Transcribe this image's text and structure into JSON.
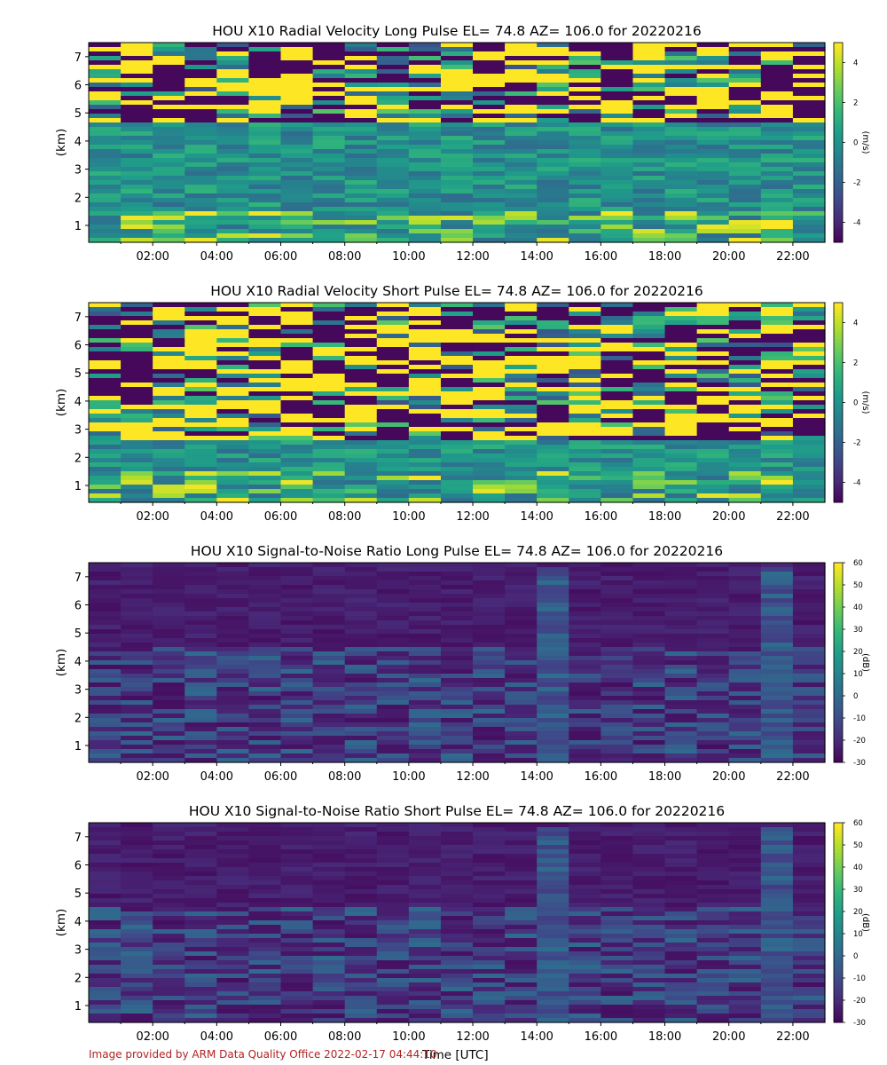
{
  "chart_data": [
    {
      "type": "heatmap",
      "title": "HOU X10 Radial Velocity Long Pulse EL= 74.8 AZ= 106.0 for 20220216",
      "ylabel": "(km)",
      "colorbar_label": "(m/s)",
      "x_ticks": [
        "02:00",
        "04:00",
        "06:00",
        "08:00",
        "10:00",
        "12:00",
        "14:00",
        "16:00",
        "18:00",
        "20:00",
        "22:00"
      ],
      "y_ticks": [
        1,
        2,
        3,
        4,
        5,
        6,
        7
      ],
      "ylim": [
        0.4,
        7.5
      ],
      "xlim_hours": [
        0,
        23
      ],
      "colorbar_ticks": [
        4,
        2,
        0,
        -2,
        -4
      ],
      "clim": [
        -5,
        5
      ],
      "colormap": "viridis"
    },
    {
      "type": "heatmap",
      "title": "HOU X10 Radial Velocity Short Pulse EL= 74.8 AZ= 106.0 for 20220216",
      "ylabel": "(km)",
      "colorbar_label": "(m/s)",
      "x_ticks": [
        "02:00",
        "04:00",
        "06:00",
        "08:00",
        "10:00",
        "12:00",
        "14:00",
        "16:00",
        "18:00",
        "20:00",
        "22:00"
      ],
      "y_ticks": [
        1,
        2,
        3,
        4,
        5,
        6,
        7
      ],
      "ylim": [
        0.4,
        7.5
      ],
      "xlim_hours": [
        0,
        23
      ],
      "colorbar_ticks": [
        4,
        2,
        0,
        -2,
        -4
      ],
      "clim": [
        -5,
        5
      ],
      "colormap": "viridis"
    },
    {
      "type": "heatmap",
      "title": "HOU X10 Signal-to-Noise Ratio Long Pulse EL= 74.8 AZ= 106.0 for 20220216",
      "ylabel": "(km)",
      "colorbar_label": "(dB)",
      "x_ticks": [
        "02:00",
        "04:00",
        "06:00",
        "08:00",
        "10:00",
        "12:00",
        "14:00",
        "16:00",
        "18:00",
        "20:00",
        "22:00"
      ],
      "y_ticks": [
        1,
        2,
        3,
        4,
        5,
        6,
        7
      ],
      "ylim": [
        0.4,
        7.5
      ],
      "xlim_hours": [
        0,
        23
      ],
      "colorbar_ticks": [
        60,
        50,
        40,
        30,
        20,
        10,
        0,
        -10,
        -20,
        -30
      ],
      "clim": [
        -30,
        60
      ],
      "colormap": "viridis"
    },
    {
      "type": "heatmap",
      "title": "HOU X10 Signal-to-Noise Ratio Short Pulse EL= 74.8 AZ= 106.0 for 20220216",
      "ylabel": "(km)",
      "colorbar_label": "(dB)",
      "x_ticks": [
        "02:00",
        "04:00",
        "06:00",
        "08:00",
        "10:00",
        "12:00",
        "14:00",
        "16:00",
        "18:00",
        "20:00",
        "22:00"
      ],
      "y_ticks": [
        1,
        2,
        3,
        4,
        5,
        6,
        7
      ],
      "ylim": [
        0.4,
        7.5
      ],
      "xlim_hours": [
        0,
        23
      ],
      "colorbar_ticks": [
        60,
        50,
        40,
        30,
        20,
        10,
        0,
        -10,
        -20,
        -30
      ],
      "clim": [
        -30,
        60
      ],
      "colormap": "viridis"
    }
  ],
  "xlabel": "Time [UTC]",
  "footer": "Image provided by ARM Data Quality Office 2022-02-17 04:44:10"
}
